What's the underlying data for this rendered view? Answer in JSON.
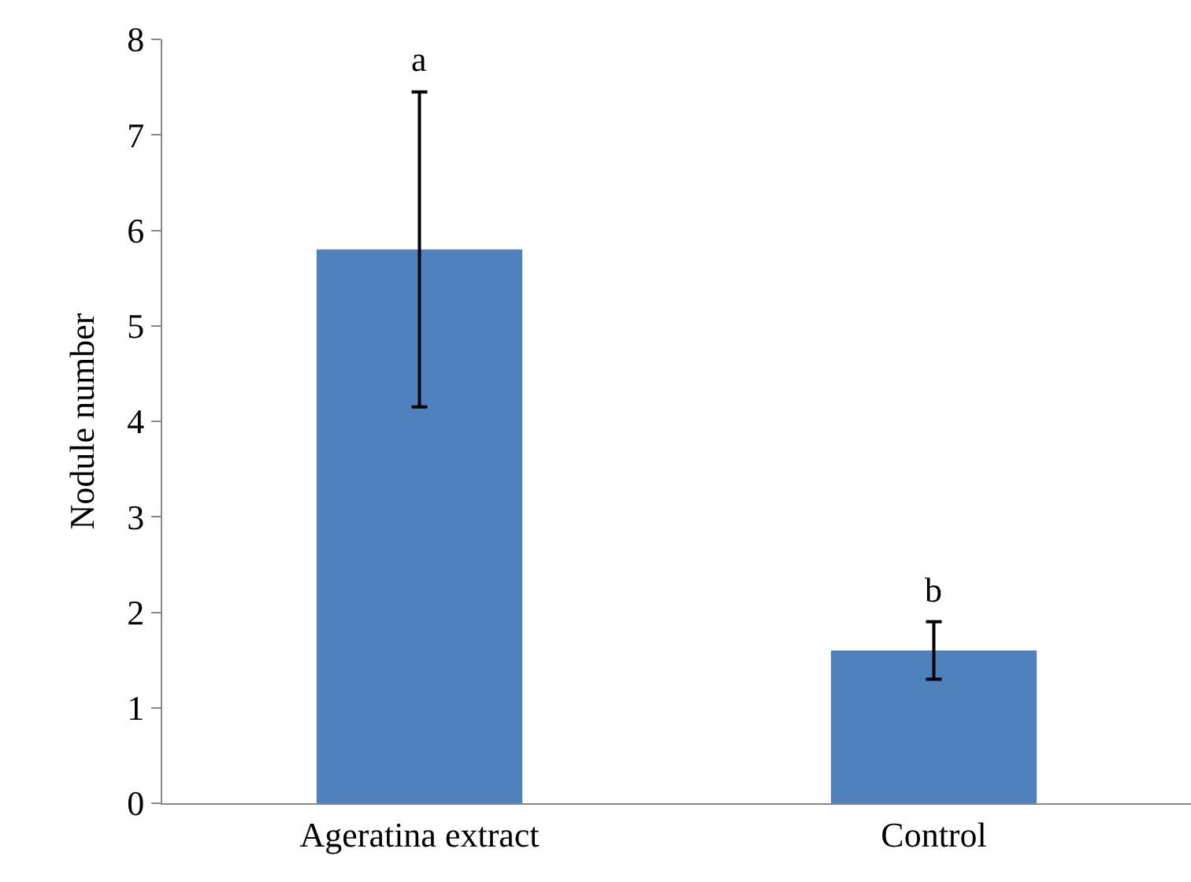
{
  "chart_data": {
    "type": "bar",
    "ylabel": "Nodule number",
    "categories": [
      "Ageratina extract",
      "Control"
    ],
    "values": [
      5.8,
      1.6
    ],
    "color": "#4f81bd",
    "errors": [
      1.65,
      0.3
    ],
    "ylim": [
      0,
      8
    ],
    "yticks": [
      0,
      1,
      2,
      3,
      4,
      5,
      6,
      7,
      8
    ],
    "grid": false,
    "annotations": [
      "a",
      "b"
    ]
  }
}
